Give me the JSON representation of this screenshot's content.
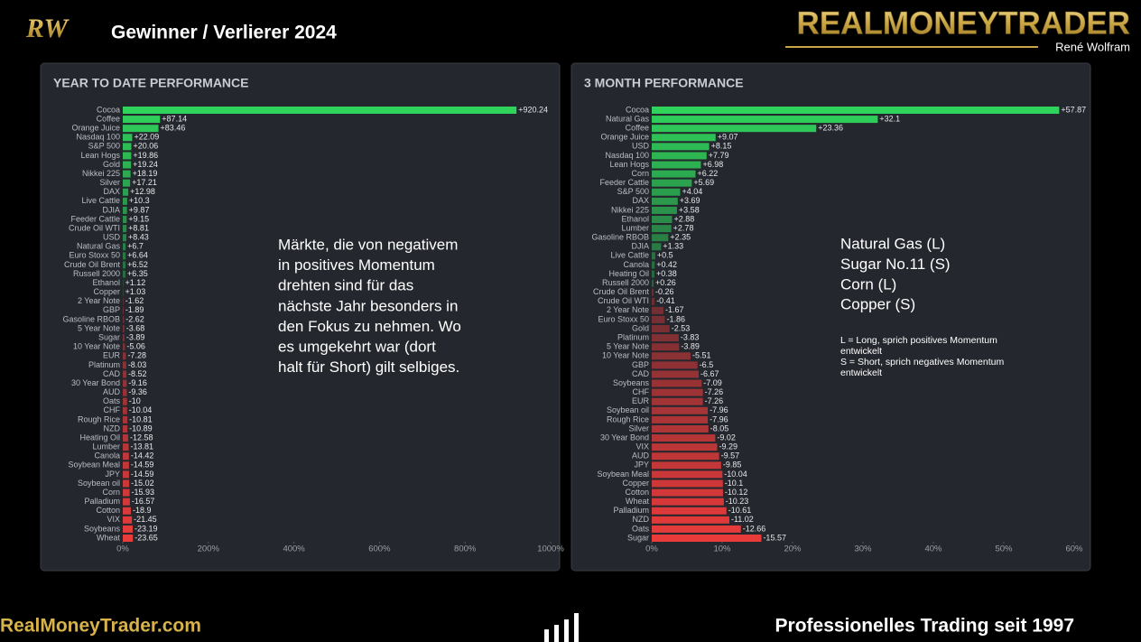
{
  "header": {
    "logo": "RW",
    "title": "Gewinner / Verlierer 2024",
    "brand": "REALMONEYTRADER",
    "brand_subtitle": "René Wolfram"
  },
  "chart_data": [
    {
      "type": "bar",
      "orientation": "horizontal",
      "title": "YEAR TO DATE PERFORMANCE",
      "categories": [
        "Cocoa",
        "Coffee",
        "Orange Juice",
        "Nasdaq 100",
        "S&P 500",
        "Lean Hogs",
        "Gold",
        "Nikkei 225",
        "Silver",
        "DAX",
        "Live Cattle",
        "DJIA",
        "Feeder Cattle",
        "Crude Oil WTI",
        "USD",
        "Natural Gas",
        "Euro Stoxx 50",
        "Crude Oil Brent",
        "Russell 2000",
        "Ethanol",
        "Copper",
        "2 Year Note",
        "GBP",
        "Gasoline RBOB",
        "5 Year Note",
        "Sugar",
        "10 Year Note",
        "EUR",
        "Platinum",
        "CAD",
        "30 Year Bond",
        "AUD",
        "Oats",
        "CHF",
        "Rough Rice",
        "NZD",
        "Heating Oil",
        "Lumber",
        "Canola",
        "Soybean Meal",
        "JPY",
        "Soybean oil",
        "Corn",
        "Palladium",
        "Cotton",
        "VIX",
        "Soybeans",
        "Wheat"
      ],
      "values": [
        920.24,
        87.14,
        83.46,
        22.09,
        20.06,
        19.86,
        19.24,
        18.19,
        17.21,
        12.98,
        10.3,
        9.87,
        9.15,
        8.81,
        8.43,
        6.7,
        6.64,
        6.52,
        6.35,
        1.12,
        1.03,
        -1.62,
        -1.89,
        -2.62,
        -3.68,
        -3.89,
        -5.06,
        -7.28,
        -8.03,
        -8.52,
        -9.16,
        -9.36,
        -10,
        -10.04,
        -10.81,
        -10.89,
        -12.58,
        -13.81,
        -14.42,
        -14.59,
        -14.59,
        -15.02,
        -15.93,
        -16.57,
        -18.9,
        -21.45,
        -23.19,
        -23.65
      ],
      "value_labels": [
        "+920.24",
        "+87.14",
        "+83.46",
        "+22.09",
        "+20.06",
        "+19.86",
        "+19.24",
        "+18.19",
        "+17.21",
        "+12.98",
        "+10.3",
        "+9.87",
        "+9.15",
        "+8.81",
        "+8.43",
        "+6.7",
        "+6.64",
        "+6.52",
        "+6.35",
        "+1.12",
        "+1.03",
        "-1.62",
        "-1.89",
        "-2.62",
        "-3.68",
        "-3.89",
        "-5.06",
        "-7.28",
        "-8.03",
        "-8.52",
        "-9.16",
        "-9.36",
        "-10",
        "-10.04",
        "-10.81",
        "-10.89",
        "-12.58",
        "-13.81",
        "-14.42",
        "-14.59",
        "-14.59",
        "-15.02",
        "-15.93",
        "-16.57",
        "-18.9",
        "-21.45",
        "-23.19",
        "-23.65"
      ],
      "xlim": [
        0,
        1000
      ],
      "xticks": [
        {
          "value": 0,
          "label": "0%"
        },
        {
          "value": 200,
          "label": "200%"
        },
        {
          "value": 400,
          "label": "400%"
        },
        {
          "value": 600,
          "label": "600%"
        },
        {
          "value": 800,
          "label": "800%"
        },
        {
          "value": 1000,
          "label": "1000%"
        }
      ],
      "positive_color": "#2fd35b",
      "negative_color": "#ea3b3b"
    },
    {
      "type": "bar",
      "orientation": "horizontal",
      "title": "3 MONTH PERFORMANCE",
      "categories": [
        "Cocoa",
        "Natural Gas",
        "Coffee",
        "Orange Juice",
        "USD",
        "Nasdaq 100",
        "Lean Hogs",
        "Corn",
        "Feeder Cattle",
        "S&P 500",
        "DAX",
        "Nikkei 225",
        "Ethanol",
        "Lumber",
        "Gasoline RBOB",
        "DJIA",
        "Live Cattle",
        "Canola",
        "Heating Oil",
        "Russell 2000",
        "Crude Oil Brent",
        "Crude Oil WTI",
        "2 Year Note",
        "Euro Stoxx 50",
        "Gold",
        "Platinum",
        "5 Year Note",
        "10 Year Note",
        "GBP",
        "CAD",
        "Soybeans",
        "CHF",
        "EUR",
        "Soybean oil",
        "Rough Rice",
        "Silver",
        "30 Year Bond",
        "VIX",
        "AUD",
        "JPY",
        "Soybean Meal",
        "Copper",
        "Cotton",
        "Wheat",
        "Palladium",
        "NZD",
        "Oats",
        "Sugar"
      ],
      "values": [
        57.87,
        32.1,
        23.36,
        9.07,
        8.15,
        7.79,
        6.98,
        6.22,
        5.69,
        4.04,
        3.69,
        3.58,
        2.88,
        2.78,
        2.35,
        1.33,
        0.5,
        0.42,
        0.38,
        0.26,
        -0.26,
        -0.41,
        -1.67,
        -1.86,
        -2.53,
        -3.83,
        -3.89,
        -5.51,
        -6.5,
        -6.67,
        -7.09,
        -7.26,
        -7.26,
        -7.96,
        -7.96,
        -8.05,
        -9.02,
        -9.29,
        -9.57,
        -9.85,
        -10.04,
        -10.1,
        -10.12,
        -10.23,
        -10.61,
        -11.02,
        -12.66,
        -15.57
      ],
      "value_labels": [
        "+57.87",
        "+32.1",
        "+23.36",
        "+9.07",
        "+8.15",
        "+7.79",
        "+6.98",
        "+6.22",
        "+5.69",
        "+4.04",
        "+3.69",
        "+3.58",
        "+2.88",
        "+2.78",
        "+2.35",
        "+1.33",
        "+0.5",
        "+0.42",
        "+0.38",
        "+0.26",
        "-0.26",
        "-0.41",
        "-1.67",
        "-1.86",
        "-2.53",
        "-3.83",
        "-3.89",
        "-5.51",
        "-6.5",
        "-6.67",
        "-7.09",
        "-7.26",
        "-7.26",
        "-7.96",
        "-7.96",
        "-8.05",
        "-9.02",
        "-9.29",
        "-9.57",
        "-9.85",
        "-10.04",
        "-10.1",
        "-10.12",
        "-10.23",
        "-10.61",
        "-11.02",
        "-12.66",
        "-15.57"
      ],
      "xlim": [
        0,
        60
      ],
      "xticks": [
        {
          "value": 0,
          "label": "0%"
        },
        {
          "value": 10,
          "label": "10%"
        },
        {
          "value": 20,
          "label": "20%"
        },
        {
          "value": 30,
          "label": "30%"
        },
        {
          "value": 40,
          "label": "40%"
        },
        {
          "value": 50,
          "label": "50%"
        },
        {
          "value": 60,
          "label": "60%"
        }
      ],
      "positive_color": "#2fd35b",
      "negative_color": "#ea3b3b"
    }
  ],
  "annotations": {
    "left_text": [
      "Märkte, die von negativem",
      "in positives Momentum",
      "drehten sind für das",
      "nächste Jahr besonders in",
      "den Fokus zu nehmen. Wo",
      "es umgekehrt war (dort",
      "halt für Short) gilt selbiges."
    ],
    "right_list": [
      "Natural Gas (L)",
      "Sugar No.11 (S)",
      "Corn (L)",
      "Copper (S)"
    ],
    "right_notes": [
      "L = Long, sprich positives Momentum entwickelt",
      "S = Short, sprich negatives Momentum entwickelt"
    ]
  },
  "footer": {
    "website": "RealMoneyTrader.com",
    "tagline": "Professionelles Trading seit 1997"
  }
}
